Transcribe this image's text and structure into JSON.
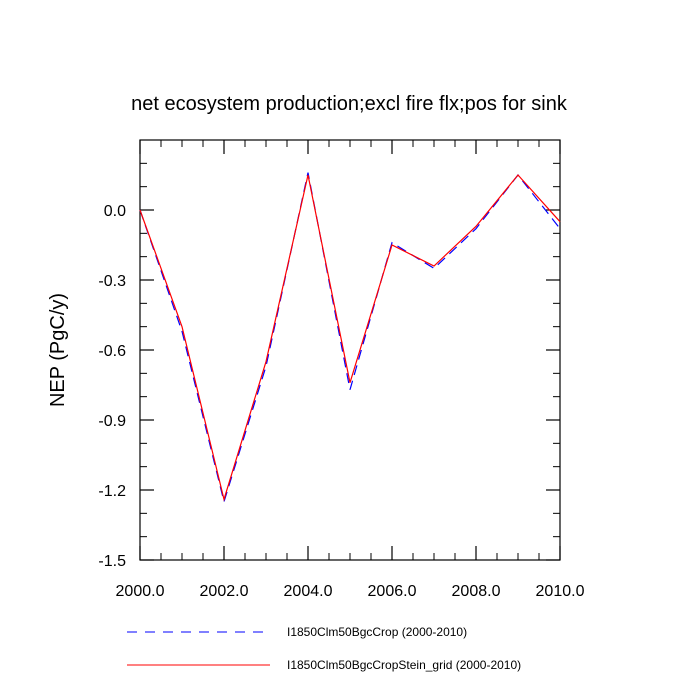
{
  "chart_data": {
    "type": "line",
    "title": "net ecosystem production;excl fire flx;pos for sink",
    "xlabel": "",
    "ylabel": "NEP  (PgC/y)",
    "xlim": [
      2000.0,
      2010.0
    ],
    "ylim": [
      -1.5,
      0.3
    ],
    "x_ticks": [
      2000.0,
      2002.0,
      2004.0,
      2006.0,
      2008.0,
      2010.0
    ],
    "x_tick_labels": [
      "2000.0",
      "2002.0",
      "2004.0",
      "2006.0",
      "2008.0",
      "2010.0"
    ],
    "y_ticks": [
      0.0,
      -0.3,
      -0.6,
      -0.9,
      -1.2,
      -1.5
    ],
    "y_tick_labels": [
      "0.0",
      "-0.3",
      "-0.6",
      "-0.9",
      "-1.2",
      "-1.5"
    ],
    "grid": false,
    "legend_position": "bottom",
    "x": [
      2000,
      2001,
      2002,
      2003,
      2004,
      2005,
      2006,
      2007,
      2008,
      2009,
      2010
    ],
    "series": [
      {
        "name": "I1850Clm50BgcCrop (2000-2010)",
        "color": "#0000ff",
        "style": "dashed",
        "values": [
          0.0,
          -0.52,
          -1.25,
          -0.67,
          0.16,
          -0.77,
          -0.14,
          -0.25,
          -0.08,
          0.15,
          -0.08
        ]
      },
      {
        "name": "I1850Clm50BgcCropStein_grid (2000-2010)",
        "color": "#ff0000",
        "style": "solid",
        "values": [
          0.0,
          -0.5,
          -1.24,
          -0.65,
          0.15,
          -0.74,
          -0.15,
          -0.24,
          -0.07,
          0.15,
          -0.05
        ]
      }
    ]
  }
}
